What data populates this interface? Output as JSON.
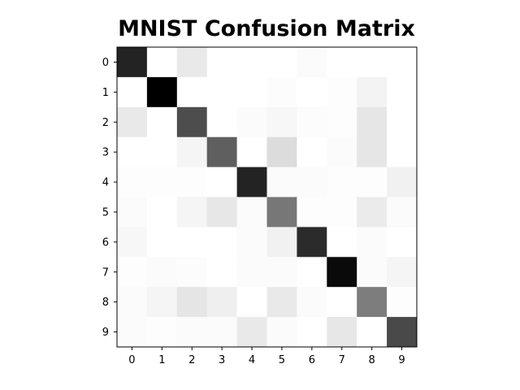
{
  "chart_data": {
    "type": "heatmap",
    "title": "MNIST Confusion Matrix",
    "xlabel": "",
    "ylabel": "",
    "x_categories": [
      "0",
      "1",
      "2",
      "3",
      "4",
      "5",
      "6",
      "7",
      "8",
      "9"
    ],
    "y_categories": [
      "0",
      "1",
      "2",
      "3",
      "4",
      "5",
      "6",
      "7",
      "8",
      "9"
    ],
    "colormap": "gray_r",
    "grid": false,
    "values": [
      [
        220,
        0,
        22,
        0,
        0,
        0,
        4,
        0,
        0,
        0
      ],
      [
        0,
        255,
        0,
        0,
        0,
        3,
        0,
        2,
        12,
        0
      ],
      [
        22,
        0,
        178,
        0,
        4,
        8,
        3,
        2,
        25,
        0
      ],
      [
        0,
        0,
        10,
        160,
        0,
        35,
        0,
        4,
        25,
        0
      ],
      [
        2,
        2,
        2,
        0,
        220,
        4,
        4,
        2,
        2,
        14
      ],
      [
        4,
        0,
        10,
        24,
        4,
        136,
        2,
        2,
        20,
        4
      ],
      [
        8,
        0,
        0,
        0,
        4,
        14,
        212,
        0,
        4,
        0
      ],
      [
        2,
        4,
        3,
        0,
        4,
        4,
        0,
        245,
        4,
        10
      ],
      [
        4,
        10,
        26,
        16,
        0,
        22,
        4,
        0,
        130,
        2
      ],
      [
        4,
        2,
        4,
        4,
        22,
        4,
        0,
        24,
        0,
        182
      ]
    ]
  }
}
